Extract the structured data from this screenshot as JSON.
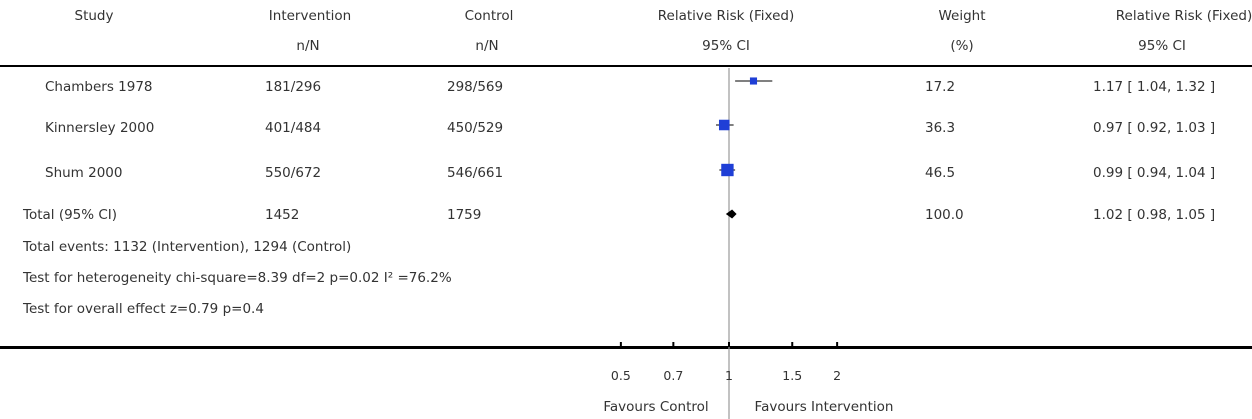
{
  "header": {
    "study": "Study",
    "intervention": "Intervention",
    "intervention_sub": "n/N",
    "control": "Control",
    "control_sub": "n/N",
    "rr": "Relative Risk (Fixed)",
    "rr_sub": "95% CI",
    "weight": "Weight",
    "weight_sub": "(%)",
    "rr2": "Relative Risk (Fixed)",
    "rr2_sub": "95% CI"
  },
  "studies": [
    {
      "name": "Chambers 1978",
      "intervention": "181/296",
      "control": "298/569",
      "weight": "17.2",
      "ci_text": "1.17 [ 1.04, 1.32 ]"
    },
    {
      "name": "Kinnersley 2000",
      "intervention": "401/484",
      "control": "450/529",
      "weight": "36.3",
      "ci_text": "0.97 [ 0.92, 1.03 ]"
    },
    {
      "name": "Shum 2000",
      "intervention": "550/672",
      "control": "546/661",
      "weight": "46.5",
      "ci_text": "0.99 [ 0.94, 1.04 ]"
    }
  ],
  "total": {
    "name": "Total (95% CI)",
    "intervention": "1452",
    "control": "1759",
    "weight": "100.0",
    "ci_text": "1.02 [ 0.98, 1.05 ]"
  },
  "footer": {
    "events": "Total events: 1132 (Intervention), 1294 (Control)",
    "heterogeneity": "Test for heterogeneity chi-square=8.39 df=2 p=0.02 I² =76.2%",
    "overall": "Test for overall effect z=0.79    p=0.4"
  },
  "axis": {
    "favours_left": "Favours Control",
    "favours_right": "Favours Intervention"
  },
  "colors": {
    "marker": "#1f3fd6",
    "line": "#000000",
    "reference": "#999999"
  },
  "chart_data": {
    "type": "scatter",
    "x_scale": "log",
    "xlim": [
      0.5,
      2
    ],
    "ticks": [
      0.5,
      0.7,
      1,
      1.5,
      2
    ],
    "tick_labels": [
      "0.5",
      "0.7",
      "1",
      "1.5",
      "2"
    ],
    "reference_line": 1,
    "points": [
      {
        "study": "Chambers 1978",
        "rr": 1.17,
        "lo": 1.04,
        "hi": 1.32,
        "weight": 17.2
      },
      {
        "study": "Kinnersley 2000",
        "rr": 0.97,
        "lo": 0.92,
        "hi": 1.03,
        "weight": 36.3
      },
      {
        "study": "Shum 2000",
        "rr": 0.99,
        "lo": 0.94,
        "hi": 1.04,
        "weight": 46.5
      }
    ],
    "pooled": {
      "rr": 1.02,
      "lo": 0.98,
      "hi": 1.05
    }
  }
}
